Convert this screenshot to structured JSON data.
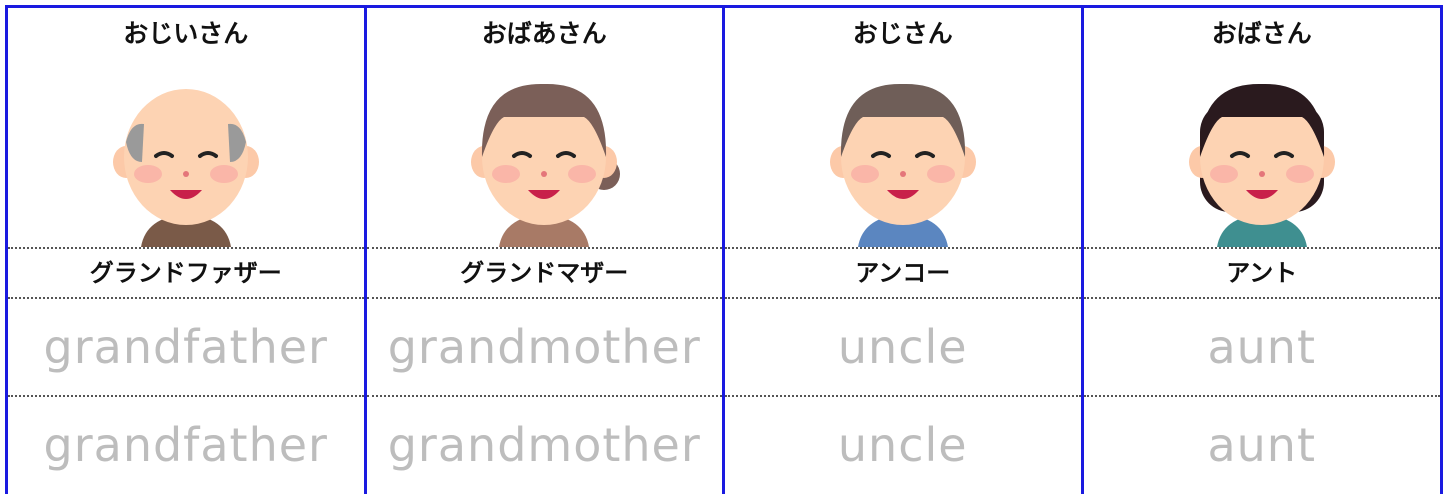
{
  "columns": [
    {
      "label": "おじいさん",
      "katakana": "グランドファザー",
      "trace": [
        "grandfather",
        "grandfather"
      ]
    },
    {
      "label": "おばあさん",
      "katakana": "グランドマザー",
      "trace": [
        "grandmother",
        "grandmother"
      ]
    },
    {
      "label": "おじさん",
      "katakana": "アンコー",
      "trace": [
        "uncle",
        "uncle"
      ]
    },
    {
      "label": "おばさん",
      "katakana": "アント",
      "trace": [
        "aunt",
        "aunt"
      ]
    }
  ]
}
